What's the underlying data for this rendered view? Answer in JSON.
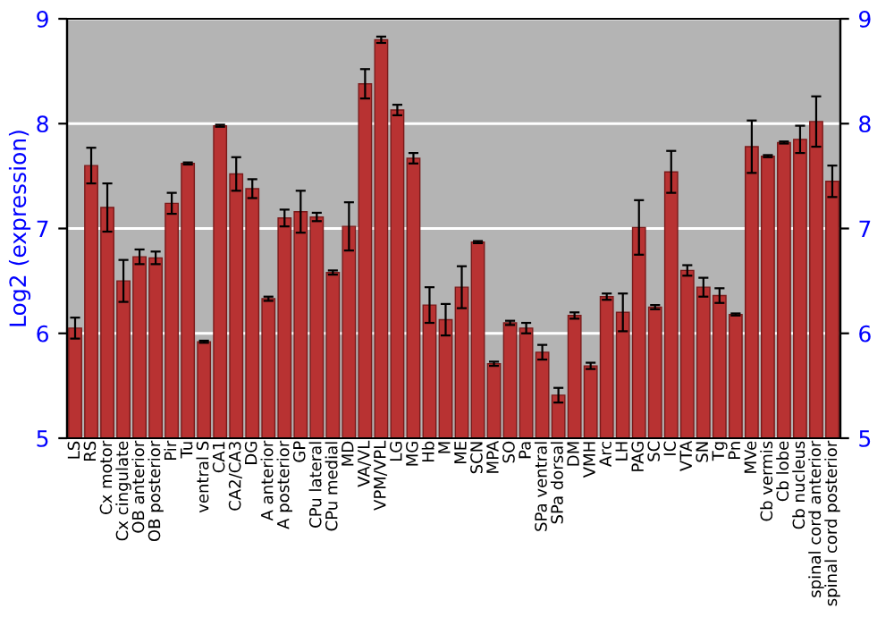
{
  "chart_data": {
    "type": "bar",
    "ylabel": "Log2 (expression)",
    "categories": [
      "LS",
      "RS",
      "Cx motor",
      "Cx cingulate",
      "OB anterior",
      "OB posterior",
      "Pir",
      "Tu",
      "ventral S",
      "CA1",
      "CA2/CA3",
      "DG",
      "A anterior",
      "A posterior",
      "GP",
      "CPu lateral",
      "CPu medial",
      "MD",
      "VA/VL",
      "VPM/VPL",
      "LG",
      "MG",
      "Hb",
      "M",
      "ME",
      "SCN",
      "MPA",
      "SO",
      "Pa",
      "SPa ventral",
      "SPa dorsal",
      "DM",
      "VMH",
      "Arc",
      "LH",
      "PAG",
      "SC",
      "IC",
      "VTA",
      "SN",
      "Tg",
      "Pn",
      "MVe",
      "Cb vermis",
      "Cb lobe",
      "Cb nucleus",
      "spinal cord anterior",
      "spinal cord posterior"
    ],
    "values": [
      6.05,
      7.6,
      7.2,
      6.5,
      6.73,
      6.72,
      7.24,
      7.62,
      5.92,
      7.98,
      7.52,
      7.38,
      6.33,
      7.1,
      7.16,
      7.11,
      6.58,
      7.02,
      8.38,
      8.8,
      8.13,
      7.67,
      6.27,
      6.13,
      6.44,
      6.87,
      5.71,
      6.1,
      6.05,
      5.82,
      5.41,
      6.17,
      5.69,
      6.35,
      6.2,
      7.01,
      6.25,
      7.54,
      6.6,
      6.44,
      6.36,
      6.18,
      7.78,
      7.69,
      7.82,
      7.85,
      8.02,
      7.45
    ],
    "errors": [
      0.1,
      0.17,
      0.23,
      0.2,
      0.07,
      0.06,
      0.1,
      0.01,
      0.01,
      0.01,
      0.16,
      0.09,
      0.02,
      0.08,
      0.2,
      0.04,
      0.02,
      0.23,
      0.14,
      0.03,
      0.05,
      0.05,
      0.17,
      0.15,
      0.2,
      0.01,
      0.02,
      0.02,
      0.05,
      0.07,
      0.07,
      0.03,
      0.03,
      0.03,
      0.18,
      0.26,
      0.02,
      0.2,
      0.05,
      0.09,
      0.07,
      0.01,
      0.25,
      0.01,
      0.01,
      0.13,
      0.24,
      0.15
    ],
    "color": "#b83232",
    "ylim": [
      5,
      9
    ],
    "yticks": [
      5,
      6,
      7,
      8,
      9
    ],
    "y2lim": [
      5,
      9
    ],
    "y2ticks": [
      5,
      6,
      7,
      8,
      9
    ],
    "grid": "y",
    "legend": false
  }
}
